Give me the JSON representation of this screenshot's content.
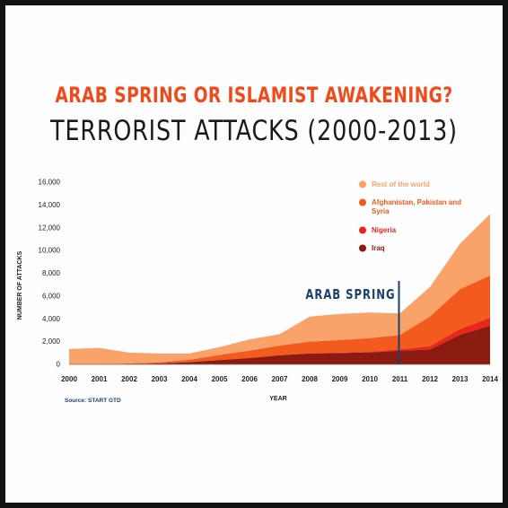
{
  "header": {
    "title": "ARAB SPRING OR ISLAMIST AWAKENING?",
    "subtitle": "TERRORIST ATTACKS (2000-2013)"
  },
  "source": "Source: START GTD",
  "chart_data": {
    "type": "area",
    "stacked": true,
    "x": [
      2000,
      2001,
      2002,
      2003,
      2004,
      2005,
      2006,
      2007,
      2008,
      2009,
      2010,
      2011,
      2012,
      2013,
      2014
    ],
    "ylim": [
      0,
      16000
    ],
    "yticks": [
      0,
      2000,
      4000,
      6000,
      8000,
      10000,
      12000,
      14000,
      16000
    ],
    "ytick_labels": [
      "0",
      "2,000",
      "4,000",
      "6,000",
      "8,000",
      "10,000",
      "12,000",
      "14,000",
      "16,000"
    ],
    "xlabel": "YEAR",
    "ylabel": "NUMBER OF ATTACKS",
    "legend_position": "top-right",
    "series": [
      {
        "name": "Iraq",
        "color": "#8b1a10",
        "values": [
          0,
          0,
          30,
          80,
          200,
          380,
          550,
          800,
          950,
          1000,
          1050,
          1200,
          1300,
          2600,
          3400
        ]
      },
      {
        "name": "Nigeria",
        "color": "#e8261c",
        "values": [
          0,
          0,
          0,
          0,
          0,
          0,
          0,
          0,
          0,
          30,
          60,
          120,
          300,
          500,
          700
        ]
      },
      {
        "name": "Afghanistan, Pakistan and Syria",
        "color": "#f25a1e",
        "values": [
          0,
          0,
          50,
          100,
          200,
          450,
          650,
          850,
          1050,
          1100,
          1200,
          1250,
          2600,
          3500,
          3700
        ]
      },
      {
        "name": "Rest of the world",
        "color": "#f9a36a",
        "values": [
          1350,
          1450,
          950,
          770,
          550,
          680,
          1000,
          1000,
          2200,
          2300,
          2250,
          1900,
          2600,
          4000,
          5400
        ]
      }
    ],
    "annotations": [
      {
        "text": "ARAB SPRING",
        "x": 2011,
        "color": "#1d3f6e"
      }
    ]
  }
}
